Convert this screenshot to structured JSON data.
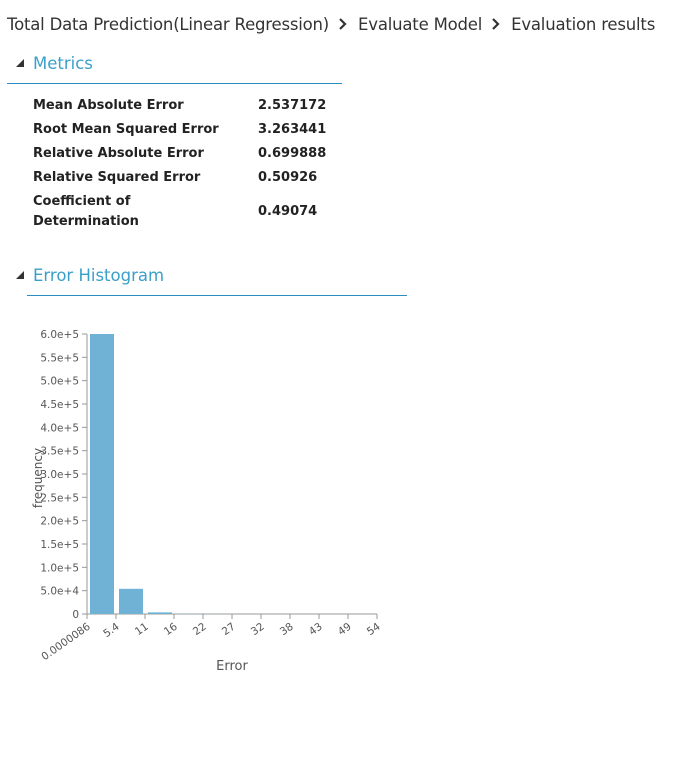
{
  "breadcrumb": {
    "items": [
      "Total Data Prediction(Linear Regression)",
      "Evaluate Model",
      "Evaluation results"
    ]
  },
  "sections": {
    "metrics_title": "Metrics",
    "histogram_title": "Error Histogram"
  },
  "metrics": [
    {
      "label": "Mean Absolute Error",
      "value": "2.537172"
    },
    {
      "label": "Root Mean Squared Error",
      "value": "3.263441"
    },
    {
      "label": "Relative Absolute Error",
      "value": "0.699888"
    },
    {
      "label": "Relative Squared Error",
      "value": "0.50926"
    },
    {
      "label_line1": "Coefficient of",
      "label_line2": "Determination",
      "value": "0.49074"
    }
  ],
  "colors": {
    "accent": "#3aa0c9",
    "bar": "#70b2d6",
    "axis": "#999999"
  },
  "icons": {
    "breadcrumb_separator": "chevron-right-icon",
    "section_toggle": "triangle-expanded-icon"
  },
  "chart_data": {
    "type": "bar",
    "xlabel": "Error",
    "ylabel": "frequency",
    "ylim": [
      0,
      600000
    ],
    "y_ticks": [
      "0",
      "5.0e+4",
      "1.0e+5",
      "1.5e+5",
      "2.0e+5",
      "2.5e+5",
      "3.0e+5",
      "3.5e+5",
      "4.0e+5",
      "4.5e+5",
      "5.0e+5",
      "5.5e+5",
      "6.0e+5"
    ],
    "x_ticks": [
      "0.0000086",
      "5.4",
      "11",
      "16",
      "22",
      "27",
      "32",
      "38",
      "43",
      "49",
      "54"
    ],
    "values": [
      600000,
      54000,
      3500,
      500,
      150,
      60,
      30,
      15,
      8,
      4
    ]
  }
}
